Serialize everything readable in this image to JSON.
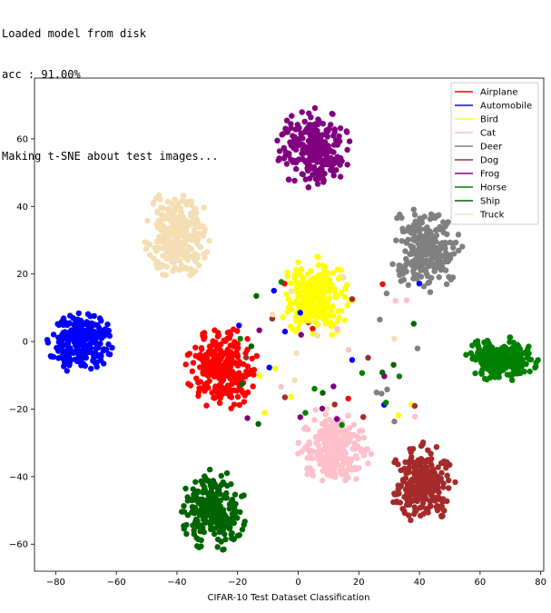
{
  "console": {
    "lines": [
      "Loaded model from disk",
      "acc : 91.00%",
      "",
      "Making t-SNE about test images..."
    ]
  },
  "chart_data": {
    "type": "scatter",
    "xlabel": "CIFAR-10 Test Dataset Classification",
    "ylabel": "",
    "title": "",
    "xlim": [
      -87,
      81
    ],
    "ylim": [
      -68,
      78
    ],
    "xticks": [
      -80,
      -60,
      -40,
      -20,
      0,
      20,
      40,
      60,
      80
    ],
    "yticks": [
      -60,
      -40,
      -20,
      0,
      20,
      40,
      60
    ],
    "grid": false,
    "legend_position": "top-right",
    "series": [
      {
        "name": "Airplane",
        "color": "#ff0000",
        "center": [
          -25,
          -8
        ],
        "spread": [
          9,
          9
        ]
      },
      {
        "name": "Automobile",
        "color": "#0000ff",
        "center": [
          -72,
          0
        ],
        "spread": [
          8,
          7
        ]
      },
      {
        "name": "Bird",
        "color": "#ffff00",
        "center": [
          6,
          13
        ],
        "spread": [
          9,
          9
        ]
      },
      {
        "name": "Cat",
        "color": "#ffc0cb",
        "center": [
          12,
          -32
        ],
        "spread": [
          9,
          8
        ]
      },
      {
        "name": "Deer",
        "color": "#808080",
        "center": [
          42,
          28
        ],
        "spread": [
          9,
          10
        ]
      },
      {
        "name": "Dog",
        "color": "#a52a2a",
        "center": [
          41,
          -42
        ],
        "spread": [
          8,
          9
        ]
      },
      {
        "name": "Frog",
        "color": "#800080",
        "center": [
          5,
          57
        ],
        "spread": [
          9,
          9
        ]
      },
      {
        "name": "Horse",
        "color": "#008000",
        "center": [
          67,
          -5
        ],
        "spread": [
          9,
          5
        ]
      },
      {
        "name": "Ship",
        "color": "#006400",
        "center": [
          -28,
          -50
        ],
        "spread": [
          8,
          9
        ]
      },
      {
        "name": "Truck",
        "color": "#f5deb3",
        "center": [
          -40,
          32
        ],
        "spread": [
          8,
          10
        ]
      }
    ]
  }
}
